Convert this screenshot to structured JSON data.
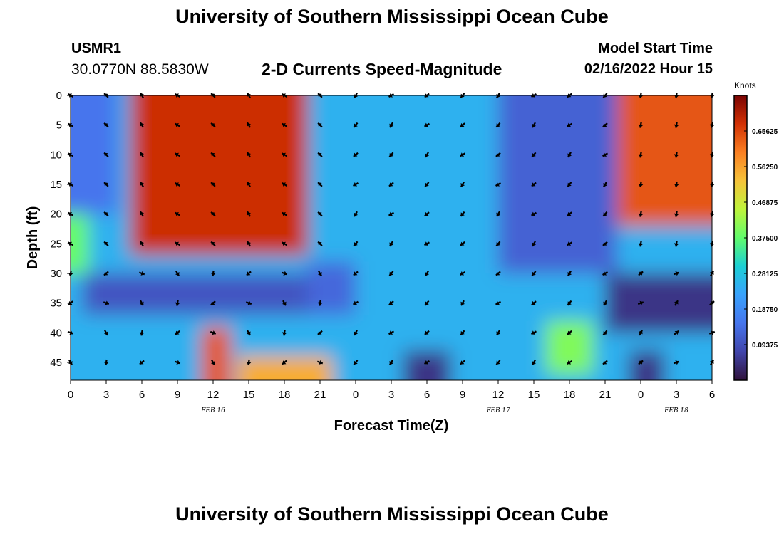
{
  "header": {
    "title": "University of Southern Mississippi Ocean Cube",
    "station_id": "USMR1",
    "location": "30.0770N  88.5830W",
    "subtitle": "2-D Currents Speed-Magnitude",
    "model_label": "Model Start Time",
    "model_time": "02/16/2022 Hour 15"
  },
  "footer": {
    "title": "University of Southern Mississippi Ocean Cube"
  },
  "colorbar": {
    "units": "Knots",
    "ticks": [
      "0.09375",
      "0.18750",
      "0.28125",
      "0.37500",
      "0.46875",
      "0.56250",
      "0.65625"
    ],
    "range": [
      0.0,
      0.75
    ]
  },
  "chart_data": {
    "type": "heatmap",
    "xlabel": "Forecast Time(Z)",
    "ylabel": "Depth (ft)",
    "x_tick_labels": [
      "0",
      "3",
      "6",
      "9",
      "12",
      "15",
      "18",
      "21",
      "0",
      "3",
      "6",
      "9",
      "12",
      "15",
      "18",
      "21",
      "0",
      "3",
      "6"
    ],
    "date_labels": [
      {
        "label": "FEB 16",
        "hour_index": 12
      },
      {
        "label": "FEB 17",
        "hour_index": 36
      },
      {
        "label": "FEB 18",
        "hour_index": 51
      }
    ],
    "x_range_hours": [
      0,
      54
    ],
    "y_tick_labels": [
      "0",
      "5",
      "10",
      "15",
      "20",
      "25",
      "30",
      "35",
      "40",
      "45"
    ],
    "ylim": [
      0,
      48
    ],
    "arrow_times_hours": [
      0,
      3,
      6,
      9,
      12,
      15,
      18,
      21,
      24,
      27,
      30,
      33,
      36,
      39,
      42,
      45,
      48,
      51,
      54
    ],
    "arrow_depths_ft": [
      0,
      5,
      10,
      15,
      20,
      25,
      30,
      35,
      40,
      45
    ],
    "speed_regions_knots": [
      {
        "note": "background",
        "value": 0.25
      },
      {
        "t": [
          5,
          20
        ],
        "d": [
          0,
          27
        ],
        "value": 0.68
      },
      {
        "t": [
          46,
          54
        ],
        "d": [
          0,
          22
        ],
        "value": 0.64
      },
      {
        "t": [
          0,
          1.5
        ],
        "d": [
          17,
          30
        ],
        "value": 0.38
      },
      {
        "t": [
          0,
          4
        ],
        "d": [
          0,
          20
        ],
        "value": 0.15
      },
      {
        "t": [
          36,
          46
        ],
        "d": [
          0,
          30
        ],
        "value": 0.12
      },
      {
        "t": [
          20,
          24
        ],
        "d": [
          28,
          37
        ],
        "value": 0.13
      },
      {
        "t": [
          1,
          20
        ],
        "d": [
          30,
          37
        ],
        "value": 0.1
      },
      {
        "t": [
          45,
          54
        ],
        "d": [
          30,
          40
        ],
        "value": 0.05
      },
      {
        "t": [
          11,
          13.5
        ],
        "d": [
          39,
          48
        ],
        "value": 0.64
      },
      {
        "t": [
          14,
          22
        ],
        "d": [
          44,
          48
        ],
        "value": 0.55
      },
      {
        "t": [
          40,
          44
        ],
        "d": [
          38,
          47
        ],
        "value": 0.4
      },
      {
        "t": [
          28,
          32
        ],
        "d": [
          43,
          48
        ],
        "value": 0.05
      },
      {
        "t": [
          47,
          50
        ],
        "d": [
          43,
          48
        ],
        "value": 0.05
      }
    ]
  }
}
